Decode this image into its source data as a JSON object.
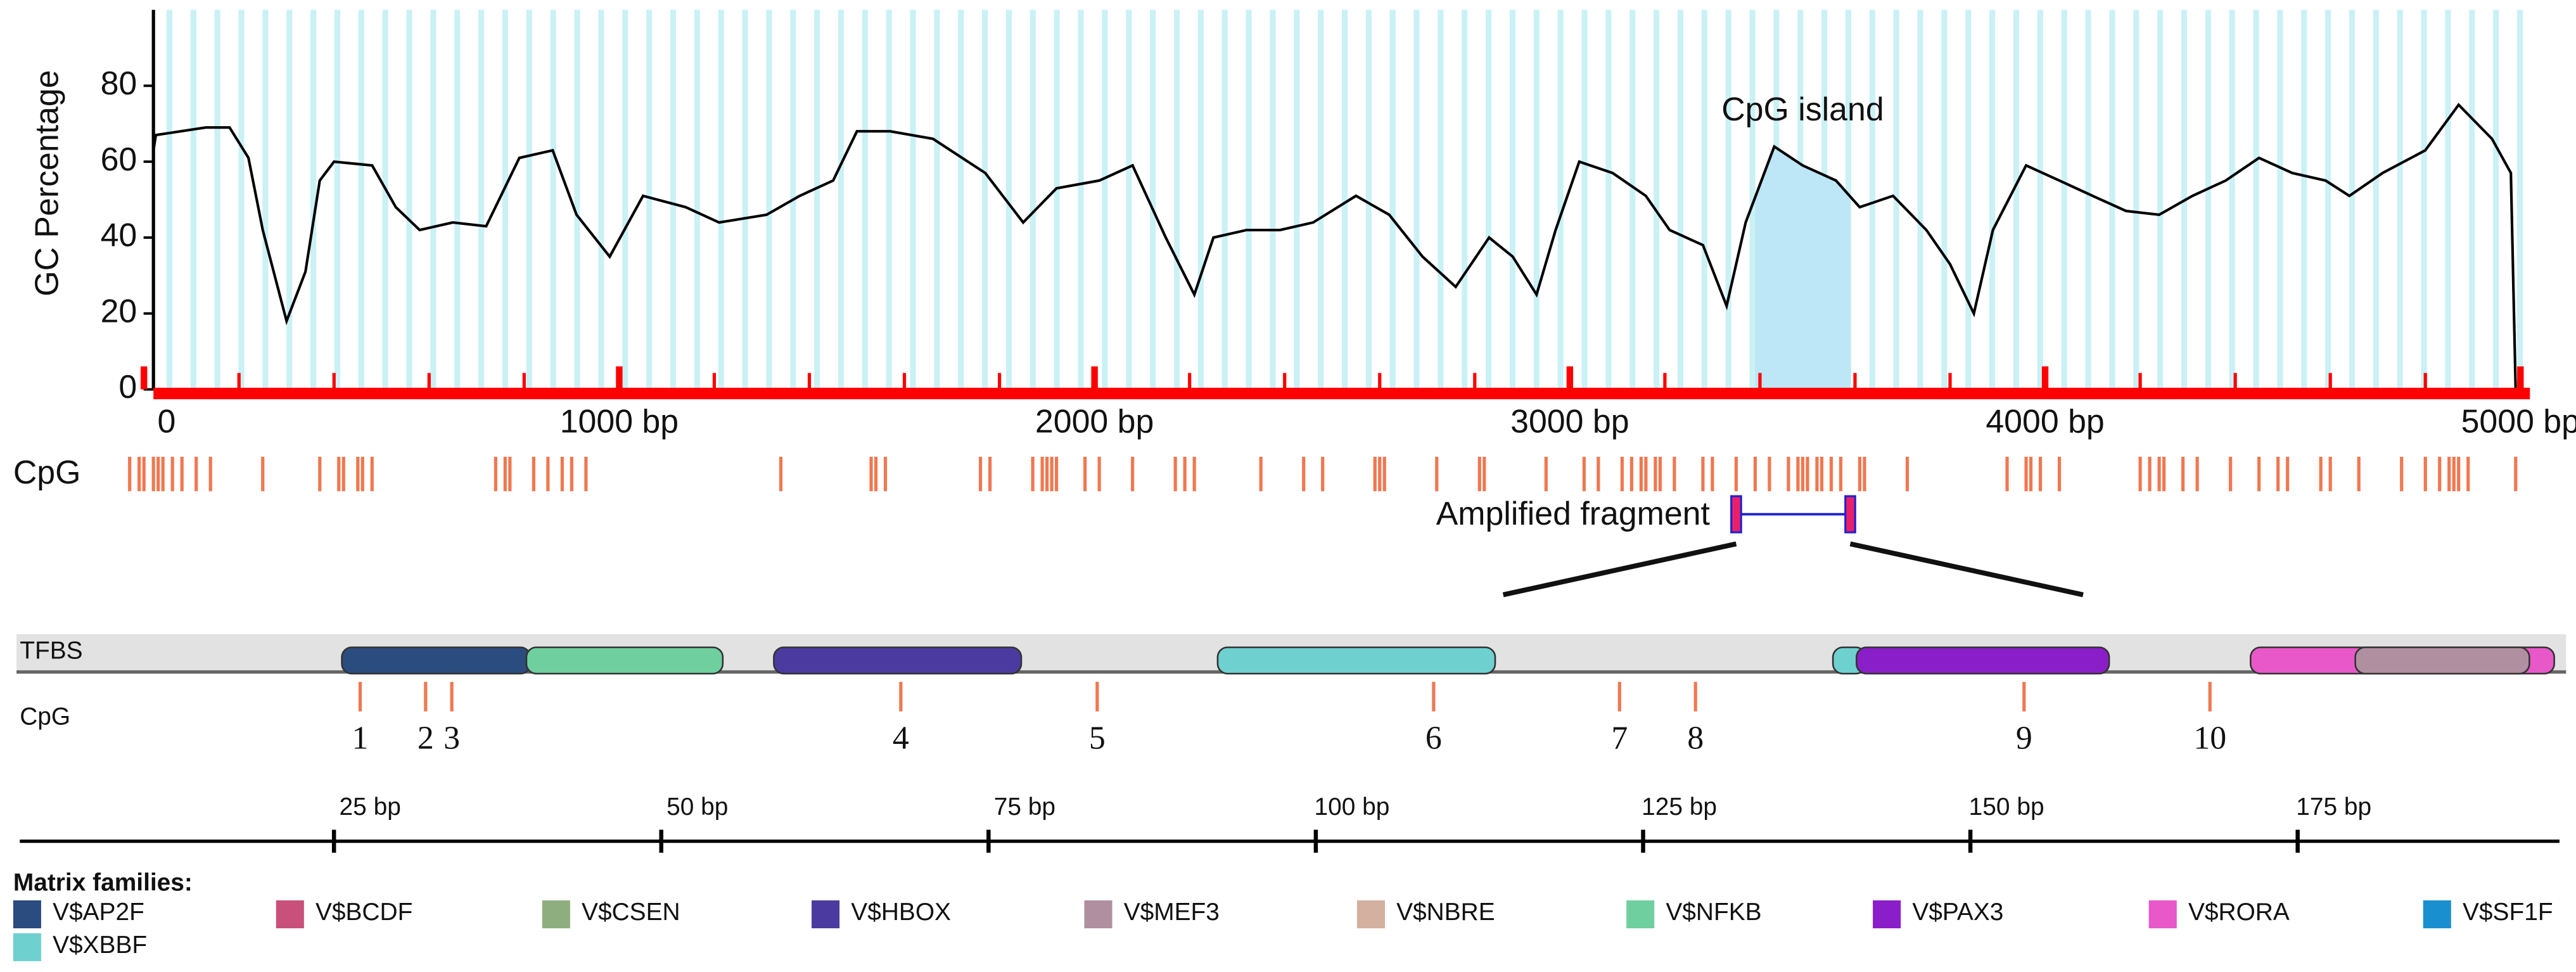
{
  "chart_data": [
    {
      "type": "line",
      "ylabel": "GC Percentage",
      "color": "#000000",
      "axis_color": "#ff0000",
      "stripe_color": "#c9f1f6",
      "xlim": [
        -40,
        5020
      ],
      "ylim": [
        0,
        100
      ],
      "yticks": [
        0,
        20,
        40,
        60,
        80
      ],
      "xticks": [
        0,
        {
          "value": 1000,
          "label": "1000 bp"
        },
        {
          "value": 2000,
          "label": "2000 bp"
        },
        {
          "value": 3000,
          "label": "3000 bp"
        },
        {
          "value": 4000,
          "label": "4000 bp"
        },
        {
          "value": 5000,
          "label": "5000 bp"
        }
      ],
      "xminor": [
        200,
        400,
        600,
        800,
        1200,
        1400,
        1600,
        1800,
        2200,
        2400,
        2600,
        2800,
        3200,
        3400,
        3600,
        3800,
        4200,
        4400,
        4600,
        4800
      ],
      "x": [
        20,
        25,
        130,
        180,
        220,
        250,
        300,
        340,
        370,
        400,
        480,
        530,
        580,
        650,
        720,
        790,
        860,
        910,
        980,
        1050,
        1140,
        1210,
        1310,
        1380,
        1450,
        1500,
        1570,
        1660,
        1770,
        1850,
        1920,
        2010,
        2080,
        2150,
        2210,
        2250,
        2320,
        2390,
        2460,
        2550,
        2620,
        2690,
        2760,
        2830,
        2880,
        2930,
        2970,
        3020,
        3090,
        3160,
        3210,
        3280,
        3330,
        3370,
        3430,
        3490,
        3560,
        3610,
        3680,
        3750,
        3800,
        3850,
        3890,
        3960,
        4030,
        4100,
        4170,
        4240,
        4310,
        4380,
        4450,
        4520,
        4590,
        4640,
        4710,
        4800,
        4870,
        4940,
        4980,
        4990
      ],
      "values": [
        63,
        67,
        69,
        69,
        61,
        42,
        18,
        31,
        55,
        60,
        59,
        48,
        42,
        44,
        43,
        61,
        63,
        46,
        35,
        51,
        48,
        44,
        46,
        51,
        55,
        68,
        68,
        66,
        57,
        44,
        53,
        55,
        59,
        40,
        25,
        40,
        42,
        42,
        44,
        51,
        46,
        35,
        27,
        40,
        35,
        25,
        42,
        60,
        57,
        51,
        42,
        38,
        22,
        44,
        64,
        59,
        55,
        48,
        51,
        42,
        33,
        20,
        42,
        59,
        55,
        51,
        47,
        46,
        51,
        55,
        61,
        57,
        55,
        51,
        57,
        63,
        75,
        66,
        57,
        0
      ],
      "annotation": {
        "text": "CpG island",
        "start": 3390,
        "end": 3590,
        "color": "#bde6f7"
      },
      "cpg_label": "CpG",
      "cpg_color": "#f07850",
      "cpg_positions": [
        -30,
        -10,
        0,
        20,
        30,
        40,
        60,
        80,
        110,
        140,
        250,
        370,
        410,
        420,
        450,
        460,
        480,
        740,
        760,
        770,
        820,
        850,
        880,
        900,
        930,
        1340,
        1530,
        1540,
        1560,
        1760,
        1780,
        1870,
        1890,
        1900,
        1910,
        1920,
        1980,
        2010,
        2080,
        2170,
        2190,
        2210,
        2350,
        2440,
        2480,
        2590,
        2600,
        2610,
        2720,
        2810,
        2820,
        2950,
        3030,
        3060,
        3110,
        3130,
        3150,
        3160,
        3180,
        3190,
        3220,
        3280,
        3300,
        3350,
        3390,
        3420,
        3460,
        3480,
        3490,
        3500,
        3520,
        3530,
        3550,
        3570,
        3610,
        3620,
        3710,
        3920,
        3960,
        3970,
        3990,
        4030,
        4200,
        4220,
        4240,
        4250,
        4290,
        4320,
        4390,
        4450,
        4490,
        4510,
        4580,
        4600,
        4660,
        4750,
        4800,
        4830,
        4850,
        4860,
        4870,
        4890,
        4990
      ],
      "fragment": {
        "label": "Amplified fragment",
        "start": 3350,
        "end": 3590,
        "color": "#2020d0",
        "end_color": "#e8206a"
      }
    },
    {
      "type": "track",
      "tfbs_label": "TFBS",
      "cpg_label": "CpG",
      "cpg_color": "#f07850",
      "xlim": [
        1,
        195
      ],
      "xticks": [
        {
          "value": 25,
          "label": "25 bp"
        },
        {
          "value": 50,
          "label": "50 bp"
        },
        {
          "value": 75,
          "label": "75 bp"
        },
        {
          "value": 100,
          "label": "100 bp"
        },
        {
          "value": 125,
          "label": "125 bp"
        },
        {
          "value": 150,
          "label": "150 bp"
        },
        {
          "value": 175,
          "label": "175 bp"
        }
      ],
      "sites": {
        "positions": [
          27,
          32,
          34,
          68.3,
          83.3,
          109,
          123.2,
          129,
          154.1,
          168.3
        ],
        "labels": [
          1,
          2,
          3,
          4,
          5,
          6,
          7,
          8,
          9,
          10
        ]
      },
      "tfbs": [
        {
          "family": "V$AP2F",
          "start": 25.6,
          "end": 40
        },
        {
          "family": "V$NFKB",
          "start": 39.7,
          "end": 54.7
        },
        {
          "family": "V$HBOX",
          "start": 58.6,
          "end": 77.5
        },
        {
          "family": "V$XBBF",
          "start": 92.5,
          "end": 113.7
        },
        {
          "family": "V$XBBF",
          "start": 139.5,
          "end": 142
        },
        {
          "family": "V$PAX3",
          "start": 141.3,
          "end": 160.6
        },
        {
          "family": "V$RORA",
          "start": 171.4,
          "end": 194.6
        },
        {
          "family": "V$MEF3",
          "start": 179.4,
          "end": 192.7
        }
      ]
    }
  ],
  "legend": {
    "title": "Matrix families:",
    "items": [
      {
        "name": "V$AP2F",
        "color": "#2b4c7e"
      },
      {
        "name": "V$BCDF",
        "color": "#c8507a"
      },
      {
        "name": "V$CSEN",
        "color": "#8fae7f"
      },
      {
        "name": "V$HBOX",
        "color": "#4b3ba0"
      },
      {
        "name": "V$MEF3",
        "color": "#b090a0"
      },
      {
        "name": "V$NBRE",
        "color": "#d4b0a0"
      },
      {
        "name": "V$NFKB",
        "color": "#6fcf9f"
      },
      {
        "name": "V$PAX3",
        "color": "#8a1ec8"
      },
      {
        "name": "V$RORA",
        "color": "#e858c8"
      },
      {
        "name": "V$SF1F",
        "color": "#1a8fd0"
      },
      {
        "name": "V$XBBF",
        "color": "#6fd0d0"
      }
    ]
  }
}
